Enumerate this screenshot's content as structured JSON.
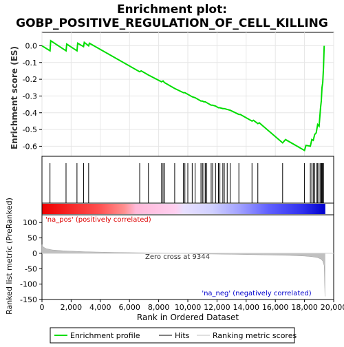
{
  "chart_data": {
    "type": "line",
    "title_line1": "Enrichment plot:",
    "title_line2": "GOBP_POSITIVE_REGULATION_OF_CELL_KILLING",
    "top_panel": {
      "ylabel": "Enrichment score (ES)",
      "ylim": [
        -0.66,
        0.08
      ],
      "y_ticks": [
        0.0,
        -0.1,
        -0.2,
        -0.3,
        -0.4,
        -0.5,
        -0.6
      ],
      "y_tick_labels": [
        "0.0",
        "-0.1",
        "-0.2",
        "-0.3",
        "-0.4",
        "-0.5",
        "-0.6"
      ],
      "grid": true,
      "line_color": "#00dd00",
      "series": [
        {
          "name": "Enrichment profile",
          "x": [
            0,
            550,
            600,
            1650,
            1700,
            2400,
            2450,
            2850,
            2900,
            3200,
            3250,
            6700,
            6800,
            7300,
            8200,
            8300,
            8400,
            9100,
            9700,
            9800,
            10000,
            10300,
            10500,
            10900,
            11000,
            11100,
            11200,
            11300,
            11600,
            11700,
            11900,
            12100,
            12200,
            12400,
            12500,
            12700,
            12900,
            13500,
            13600,
            14400,
            14500,
            14800,
            14900,
            16500,
            16700,
            18000,
            18100,
            18400,
            18500,
            18600,
            18700,
            18800,
            18900,
            19000,
            19100,
            19150,
            19200,
            19250,
            19300,
            19350
          ],
          "y": [
            0.0,
            -0.03,
            0.03,
            -0.03,
            0.01,
            -0.03,
            0.015,
            -0.005,
            0.02,
            0.0,
            0.015,
            -0.155,
            -0.15,
            -0.175,
            -0.215,
            -0.21,
            -0.22,
            -0.255,
            -0.28,
            -0.28,
            -0.29,
            -0.305,
            -0.31,
            -0.33,
            -0.33,
            -0.335,
            -0.335,
            -0.34,
            -0.355,
            -0.355,
            -0.36,
            -0.37,
            -0.37,
            -0.375,
            -0.375,
            -0.38,
            -0.385,
            -0.41,
            -0.41,
            -0.45,
            -0.445,
            -0.465,
            -0.46,
            -0.58,
            -0.56,
            -0.625,
            -0.595,
            -0.6,
            -0.56,
            -0.565,
            -0.53,
            -0.52,
            -0.47,
            -0.48,
            -0.37,
            -0.33,
            -0.25,
            -0.22,
            -0.13,
            0.0
          ]
        }
      ]
    },
    "hits": {
      "name": "Hits",
      "x": [
        550,
        1650,
        2400,
        2850,
        3200,
        6700,
        7300,
        8200,
        8300,
        8400,
        9100,
        9700,
        9800,
        10000,
        10300,
        10500,
        10900,
        11000,
        11100,
        11200,
        11300,
        11600,
        11700,
        11900,
        12100,
        12200,
        12400,
        12500,
        12700,
        12900,
        13500,
        14400,
        14800,
        16500,
        18000,
        18400,
        18500,
        18600,
        18700,
        18800,
        18900,
        19000,
        19100,
        19150,
        19200,
        19250,
        19300
      ]
    },
    "bottom_panel": {
      "ylabel": "Ranked list metric (PreRanked)",
      "xlabel": "Rank in Ordered Dataset",
      "ylim": [
        -150,
        125
      ],
      "y_ticks": [
        100,
        50,
        0,
        -50,
        -100,
        -150
      ],
      "y_tick_labels": [
        "100",
        "50",
        "0",
        "-50",
        "-100",
        "-150"
      ],
      "x_ticks": [
        0,
        2000,
        4000,
        6000,
        8000,
        10000,
        12000,
        14000,
        16000,
        18000,
        20000
      ],
      "x_tick_labels": [
        "0",
        "2,000",
        "4,000",
        "6,000",
        "8,000",
        "10,000",
        "12,000",
        "14,000",
        "16,000",
        "18,000",
        "20,000"
      ],
      "xlim": [
        0,
        20000
      ],
      "ranked_metric": {
        "name": "Ranking metric scores",
        "x": [
          0,
          100,
          300,
          700,
          1500,
          3000,
          5000,
          7000,
          9344,
          11000,
          13000,
          15000,
          17000,
          18000,
          18500,
          18900,
          19100,
          19250,
          19350,
          19400
        ],
        "y": [
          28,
          20,
          15,
          11,
          8,
          5,
          3,
          1.5,
          0,
          -2,
          -3,
          -5,
          -7,
          -9,
          -11,
          -14,
          -18,
          -25,
          -40,
          -140
        ]
      },
      "zero_cross_label": "Zero cross at 9344",
      "pos_label": "'na_pos' (positively correlated)",
      "neg_label": "'na_neg' (negatively correlated)",
      "pos_label_color": "#dd0000",
      "neg_label_color": "#0000cc"
    },
    "legend": {
      "placement": "bottom",
      "items": [
        {
          "label": "Enrichment profile",
          "color": "#00dd00"
        },
        {
          "label": "Hits",
          "color": "#000000"
        },
        {
          "label": "Ranking metric scores",
          "color": "#c0c0c0"
        }
      ]
    }
  }
}
